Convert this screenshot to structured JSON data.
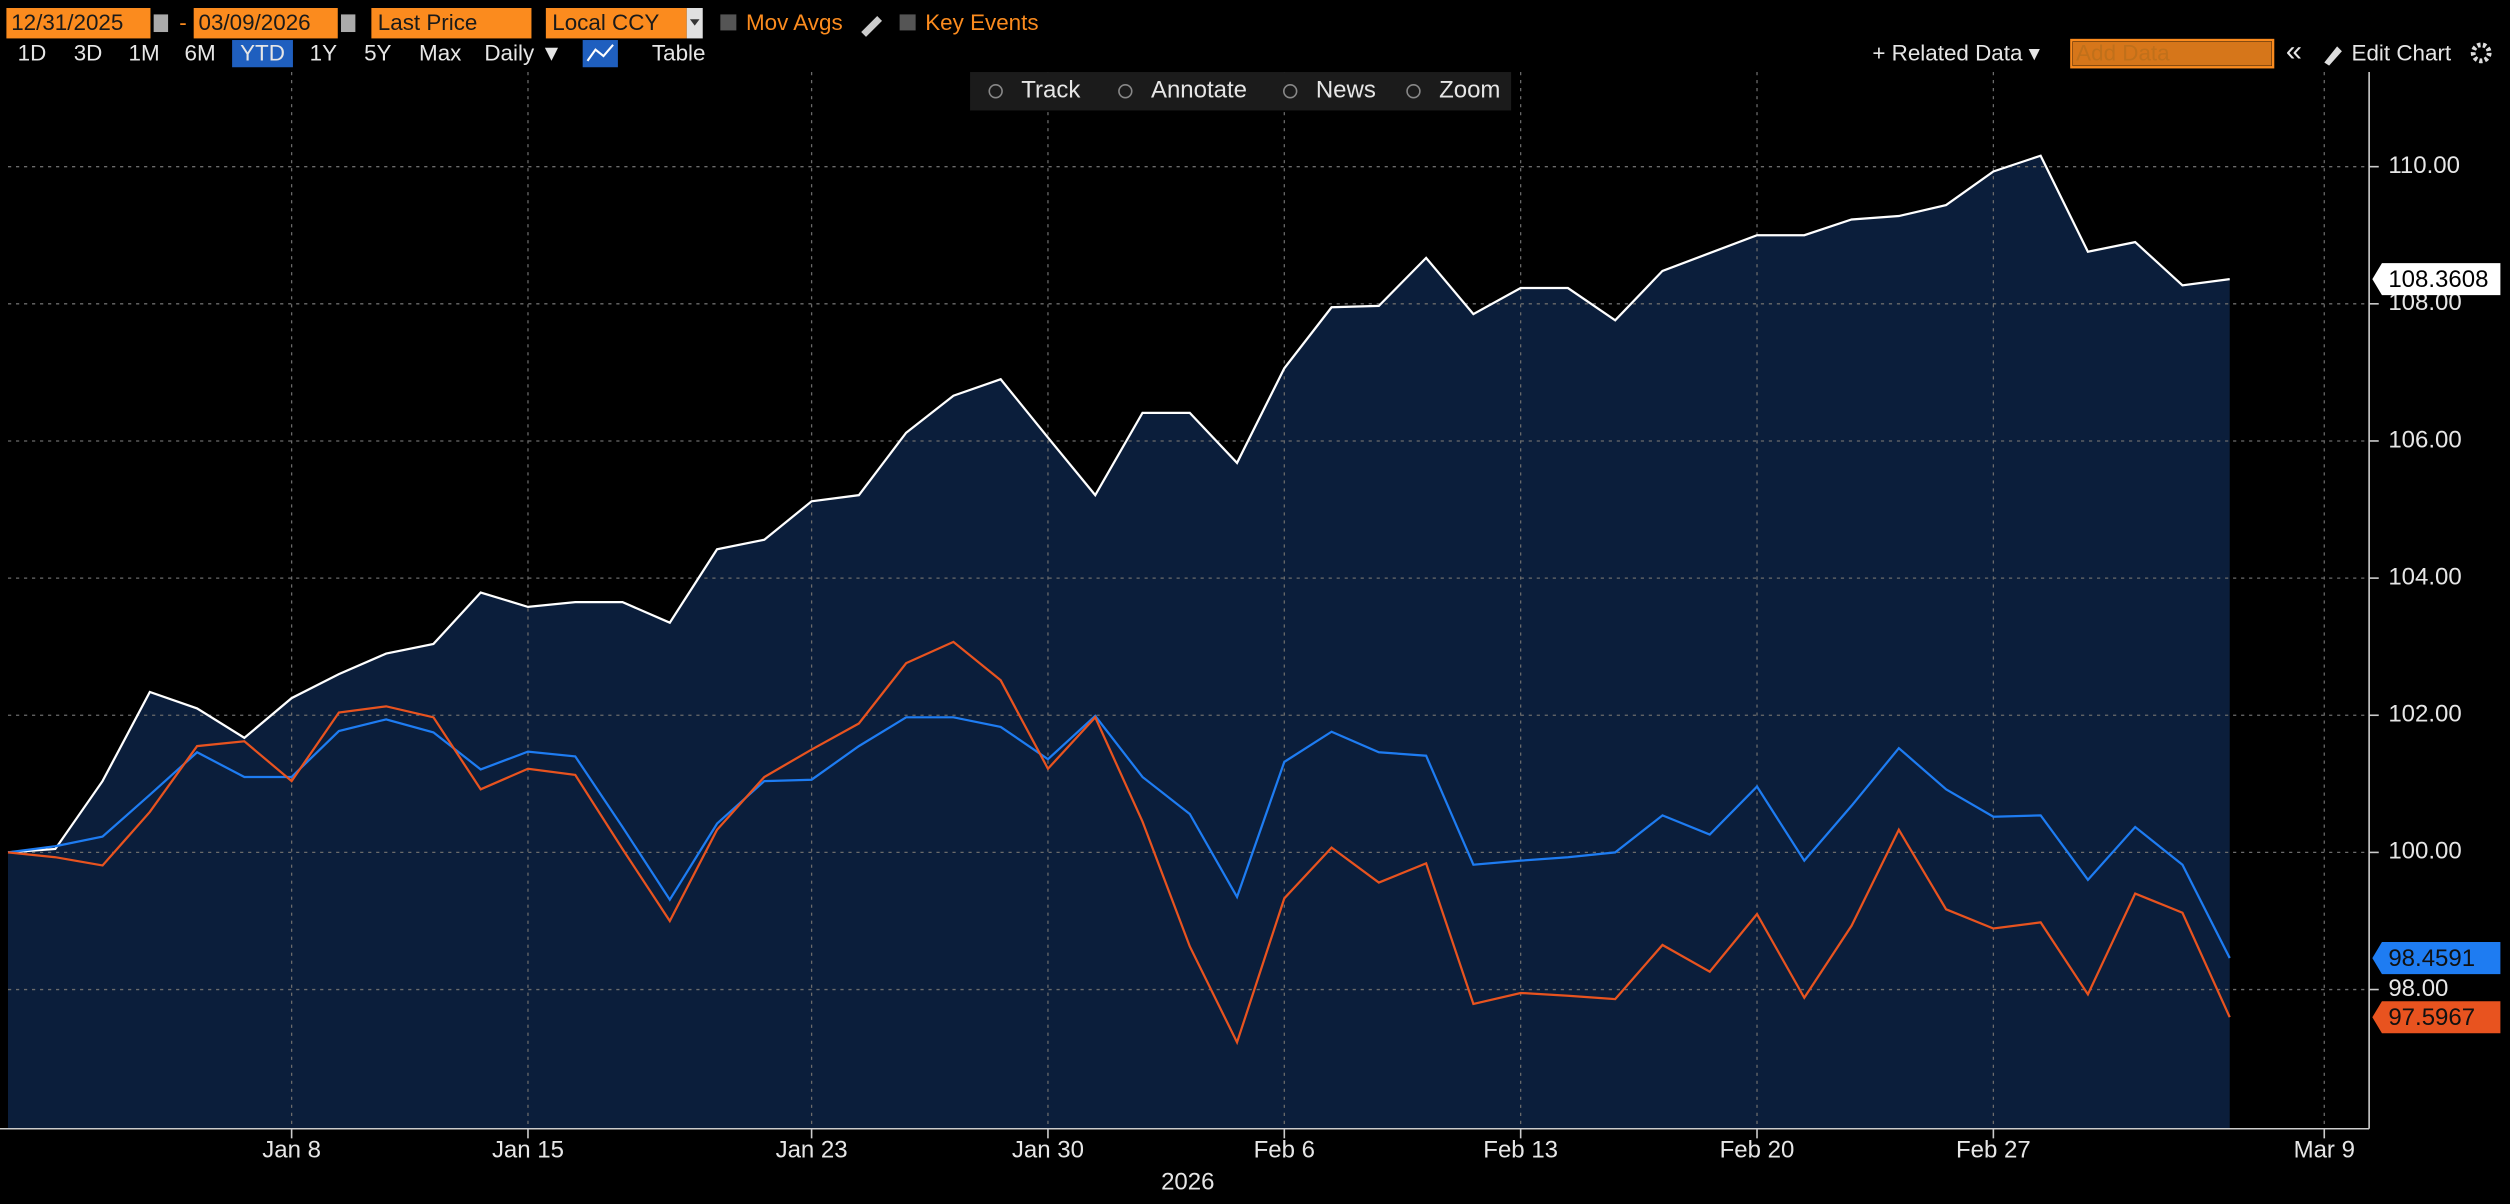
{
  "toolbar": {
    "start_date": "12/31/2025",
    "date_separator": "-",
    "end_date": "03/09/2026",
    "field": "Last Price",
    "currency": "Local CCY",
    "mov_avgs": "Mov Avgs",
    "key_events": "Key Events",
    "periods": [
      "1D",
      "3D",
      "1M",
      "6M",
      "YTD",
      "1Y",
      "5Y",
      "Max"
    ],
    "selected_period": 4,
    "frequency": "Daily ▼",
    "table": "Table",
    "related_data": "+ Related Data ▾",
    "add_data": "Add Data",
    "collapse": "«",
    "edit_chart": "Edit Chart",
    "tools": [
      "Track",
      "Annotate",
      "News",
      "Zoom"
    ]
  },
  "chart_data": {
    "type": "area-line",
    "xlabel": "2026",
    "categories": [
      null,
      null,
      null,
      null,
      null,
      null,
      "Jan 8",
      null,
      null,
      null,
      null,
      "Jan 15",
      null,
      null,
      null,
      null,
      null,
      "Jan 23",
      null,
      null,
      null,
      null,
      "Jan 30",
      null,
      null,
      null,
      null,
      "Feb 6",
      null,
      null,
      null,
      null,
      "Feb 13",
      null,
      null,
      null,
      null,
      "Feb 20",
      null,
      null,
      null,
      null,
      "Feb 27",
      null,
      null,
      null,
      null,
      null,
      null,
      "Mar 9"
    ],
    "series": [
      {
        "color": "#ffffff",
        "fill": "#0b1e3b",
        "values": [
          100.0,
          100.05,
          101.04,
          102.34,
          102.1,
          101.67,
          102.25,
          102.6,
          102.9,
          103.04,
          103.79,
          103.58,
          103.65,
          103.65,
          103.35,
          104.42,
          104.56,
          105.12,
          105.21,
          106.12,
          106.66,
          106.9,
          106.05,
          105.21,
          106.41,
          106.41,
          105.68,
          107.06,
          107.95,
          107.97,
          108.67,
          107.85,
          108.23,
          108.23,
          107.76,
          108.48,
          108.74,
          109.0,
          109.0,
          109.23,
          109.28,
          109.44,
          109.93,
          110.16,
          108.76,
          108.9,
          108.27,
          108.3608,
          null,
          null
        ],
        "last_label": "108.3608"
      },
      {
        "color": "#1e7cf2",
        "values": [
          100.0,
          100.09,
          100.23,
          100.84,
          101.46,
          101.1,
          101.1,
          101.77,
          101.94,
          101.75,
          101.21,
          101.47,
          101.4,
          100.37,
          99.31,
          100.42,
          101.04,
          101.06,
          101.55,
          101.97,
          101.97,
          101.83,
          101.36,
          101.99,
          101.1,
          100.56,
          99.35,
          101.32,
          101.76,
          101.46,
          101.41,
          99.82,
          99.88,
          99.93,
          100.0,
          100.54,
          100.26,
          100.96,
          99.88,
          100.68,
          101.52,
          100.92,
          100.52,
          100.54,
          99.6,
          100.37,
          99.82,
          98.4591,
          null,
          null
        ],
        "last_label": "98.4591"
      },
      {
        "color": "#e8531f",
        "values": [
          100.0,
          99.93,
          99.81,
          100.59,
          101.55,
          101.62,
          101.04,
          102.04,
          102.13,
          101.97,
          100.92,
          101.22,
          101.13,
          100.05,
          99.0,
          100.33,
          101.1,
          101.5,
          101.88,
          102.76,
          103.07,
          102.51,
          101.22,
          101.97,
          100.45,
          98.63,
          97.23,
          99.33,
          100.07,
          99.56,
          99.84,
          97.79,
          97.95,
          97.91,
          97.86,
          98.65,
          98.26,
          99.1,
          97.88,
          98.93,
          100.33,
          99.17,
          98.89,
          98.98,
          97.93,
          99.4,
          99.12,
          97.5967,
          null,
          null
        ],
        "last_label": "97.5967"
      }
    ],
    "ylim": [
      95.97,
      111.38
    ],
    "yticks": [
      {
        "value": 98,
        "label": "98.00"
      },
      {
        "value": 100,
        "label": "100.00"
      },
      {
        "value": 102,
        "label": "102.00"
      },
      {
        "value": 104,
        "label": "104.00"
      },
      {
        "value": 106,
        "label": "106.00"
      },
      {
        "value": 108,
        "label": "108.00"
      },
      {
        "value": 110,
        "label": "110.00"
      }
    ],
    "grid": true,
    "y_axis_side": "right"
  }
}
